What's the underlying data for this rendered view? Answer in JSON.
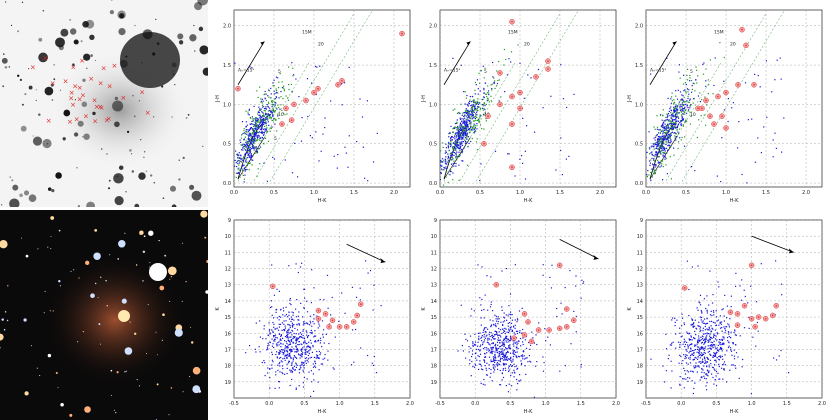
{
  "images": {
    "top": {
      "caption": "",
      "markers": "x"
    },
    "bottom": {
      "caption": ""
    }
  },
  "chart_data": [
    {
      "type": "scatter",
      "row": "top",
      "col": 0,
      "xlabel": "H-K",
      "ylabel": "J-H",
      "xlim": [
        0,
        2.2
      ],
      "ylim": [
        -0.05,
        2.2
      ],
      "xticks": [
        "0.0",
        "0.5",
        "1.0",
        "1.5",
        "2.0"
      ],
      "yticks": [
        "0.0",
        "0.5",
        "1.0",
        "1.5",
        "2.0"
      ],
      "annotations": [
        {
          "text": "Aᵥ=15ˢ"
        },
        {
          "text": "15M"
        },
        {
          "text": "20"
        },
        {
          "text": "5"
        },
        {
          "text": "10"
        },
        {
          "text": "5"
        }
      ],
      "highlighted": [
        [
          2.1,
          1.9
        ],
        [
          1.35,
          1.3
        ],
        [
          1.3,
          1.25
        ],
        [
          1.05,
          1.2
        ],
        [
          1.0,
          1.15
        ],
        [
          0.9,
          1.05
        ],
        [
          0.75,
          1.0
        ],
        [
          0.65,
          0.95
        ],
        [
          0.72,
          0.8
        ],
        [
          0.6,
          0.75
        ],
        [
          0.05,
          1.2
        ]
      ],
      "series_colors": {
        "field": "#1a1ad8",
        "class": "#1f9a1f",
        "highlight": "#d33"
      }
    },
    {
      "type": "scatter",
      "row": "top",
      "col": 1,
      "xlabel": "H-K",
      "ylabel": "J-H",
      "xlim": [
        0,
        2.2
      ],
      "ylim": [
        -0.05,
        2.2
      ],
      "xticks": [
        "0.0",
        "0.5",
        "1.0",
        "1.5",
        "2.0"
      ],
      "yticks": [
        "0.0",
        "0.5",
        "1.0",
        "1.5",
        "2.0"
      ],
      "annotations": [
        {
          "text": "Aᵥ=15ˢ"
        },
        {
          "text": "15M"
        },
        {
          "text": "20"
        },
        {
          "text": "5"
        },
        {
          "text": "10"
        }
      ],
      "highlighted": [
        [
          0.9,
          2.05
        ],
        [
          1.35,
          1.55
        ],
        [
          1.35,
          1.45
        ],
        [
          1.2,
          1.35
        ],
        [
          0.75,
          1.4
        ],
        [
          1.0,
          1.15
        ],
        [
          0.9,
          1.1
        ],
        [
          1.0,
          0.95
        ],
        [
          0.75,
          1.0
        ],
        [
          0.6,
          0.85
        ],
        [
          0.9,
          0.75
        ],
        [
          0.55,
          0.5
        ],
        [
          0.9,
          0.2
        ]
      ],
      "series_colors": {
        "field": "#1a1ad8",
        "class": "#1f9a1f",
        "highlight": "#d33"
      }
    },
    {
      "type": "scatter",
      "row": "top",
      "col": 2,
      "xlabel": "H-K",
      "ylabel": "J-H",
      "xlim": [
        0,
        2.2
      ],
      "ylim": [
        -0.05,
        2.2
      ],
      "xticks": [
        "0.0",
        "0.5",
        "1.0",
        "1.5",
        "2.0"
      ],
      "yticks": [
        "0.0",
        "0.5",
        "1.0",
        "1.5",
        "2.0"
      ],
      "annotations": [
        {
          "text": "Aᵥ=15ˢ"
        },
        {
          "text": "15M"
        },
        {
          "text": "20"
        },
        {
          "text": "5"
        },
        {
          "text": "10"
        }
      ],
      "highlighted": [
        [
          1.2,
          1.95
        ],
        [
          1.25,
          1.75
        ],
        [
          1.35,
          1.25
        ],
        [
          1.15,
          1.25
        ],
        [
          1.0,
          1.15
        ],
        [
          0.9,
          1.1
        ],
        [
          0.75,
          1.05
        ],
        [
          0.65,
          0.95
        ],
        [
          0.8,
          0.85
        ],
        [
          0.95,
          0.85
        ],
        [
          1.0,
          0.7
        ],
        [
          0.85,
          0.75
        ],
        [
          0.7,
          0.95
        ]
      ],
      "series_colors": {
        "field": "#1a1ad8",
        "class": "#1f9a1f",
        "highlight": "#d33"
      }
    },
    {
      "type": "scatter",
      "row": "bottom",
      "col": 0,
      "xlabel": "H-K",
      "ylabel": "K",
      "xlim": [
        -0.5,
        2.0
      ],
      "ylim": [
        20,
        9
      ],
      "xticks": [
        "-0.5",
        "0.0",
        "0.5",
        "1.0",
        "1.5",
        "2.0"
      ],
      "yticks": [
        "9",
        "10",
        "11",
        "12",
        "13",
        "14",
        "15",
        "16",
        "17",
        "18",
        "19"
      ],
      "highlighted": [
        [
          0.05,
          13.1
        ],
        [
          0.7,
          14.6
        ],
        [
          0.8,
          14.8
        ],
        [
          0.7,
          15.1
        ],
        [
          0.9,
          15.2
        ],
        [
          1.0,
          15.6
        ],
        [
          0.85,
          15.6
        ],
        [
          1.1,
          15.6
        ],
        [
          1.2,
          15.3
        ],
        [
          1.25,
          14.9
        ],
        [
          1.3,
          14.2
        ]
      ],
      "arrow": {
        "from": [
          1.1,
          10.5
        ],
        "to": [
          1.65,
          11.6
        ]
      },
      "series_colors": {
        "field": "#1a1ad8",
        "highlight": "#d33"
      }
    },
    {
      "type": "scatter",
      "row": "bottom",
      "col": 1,
      "xlabel": "H-K",
      "ylabel": "K",
      "xlim": [
        -0.5,
        2.0
      ],
      "ylim": [
        20,
        9
      ],
      "xticks": [
        "-0.5",
        "0.0",
        "0.5",
        "1.0",
        "1.5",
        "2.0"
      ],
      "yticks": [
        "9",
        "10",
        "11",
        "12",
        "13",
        "14",
        "15",
        "16",
        "17",
        "18",
        "19"
      ],
      "highlighted": [
        [
          0.3,
          13.0
        ],
        [
          1.2,
          11.8
        ],
        [
          0.7,
          14.8
        ],
        [
          0.75,
          15.3
        ],
        [
          1.3,
          14.5
        ],
        [
          1.4,
          15.2
        ],
        [
          0.9,
          15.8
        ],
        [
          1.05,
          15.8
        ],
        [
          1.2,
          15.7
        ],
        [
          1.3,
          15.6
        ],
        [
          0.7,
          16.1
        ],
        [
          0.8,
          16.5
        ],
        [
          0.55,
          16.3
        ]
      ],
      "arrow": {
        "from": [
          1.2,
          10.2
        ],
        "to": [
          1.75,
          11.4
        ]
      },
      "series_colors": {
        "field": "#1a1ad8",
        "highlight": "#d33"
      }
    },
    {
      "type": "scatter",
      "row": "bottom",
      "col": 2,
      "xlabel": "H-K",
      "ylabel": "K",
      "xlim": [
        -0.5,
        2.0
      ],
      "ylim": [
        20,
        9
      ],
      "xticks": [
        "-0.5",
        "0.0",
        "0.5",
        "1.0",
        "1.5",
        "2.0"
      ],
      "yticks": [
        "9",
        "10",
        "11",
        "12",
        "13",
        "14",
        "15",
        "16",
        "17",
        "18",
        "19"
      ],
      "highlighted": [
        [
          1.0,
          11.8
        ],
        [
          0.05,
          13.2
        ],
        [
          0.7,
          14.7
        ],
        [
          0.8,
          14.8
        ],
        [
          0.9,
          14.3
        ],
        [
          1.0,
          15.1
        ],
        [
          1.1,
          15.0
        ],
        [
          1.2,
          15.1
        ],
        [
          1.3,
          14.9
        ],
        [
          1.35,
          14.3
        ],
        [
          0.8,
          15.5
        ],
        [
          1.05,
          15.6
        ]
      ],
      "arrow": {
        "from": [
          1.0,
          10.0
        ],
        "to": [
          1.6,
          11.0
        ]
      },
      "series_colors": {
        "field": "#1a1ad8",
        "highlight": "#d33"
      }
    }
  ]
}
